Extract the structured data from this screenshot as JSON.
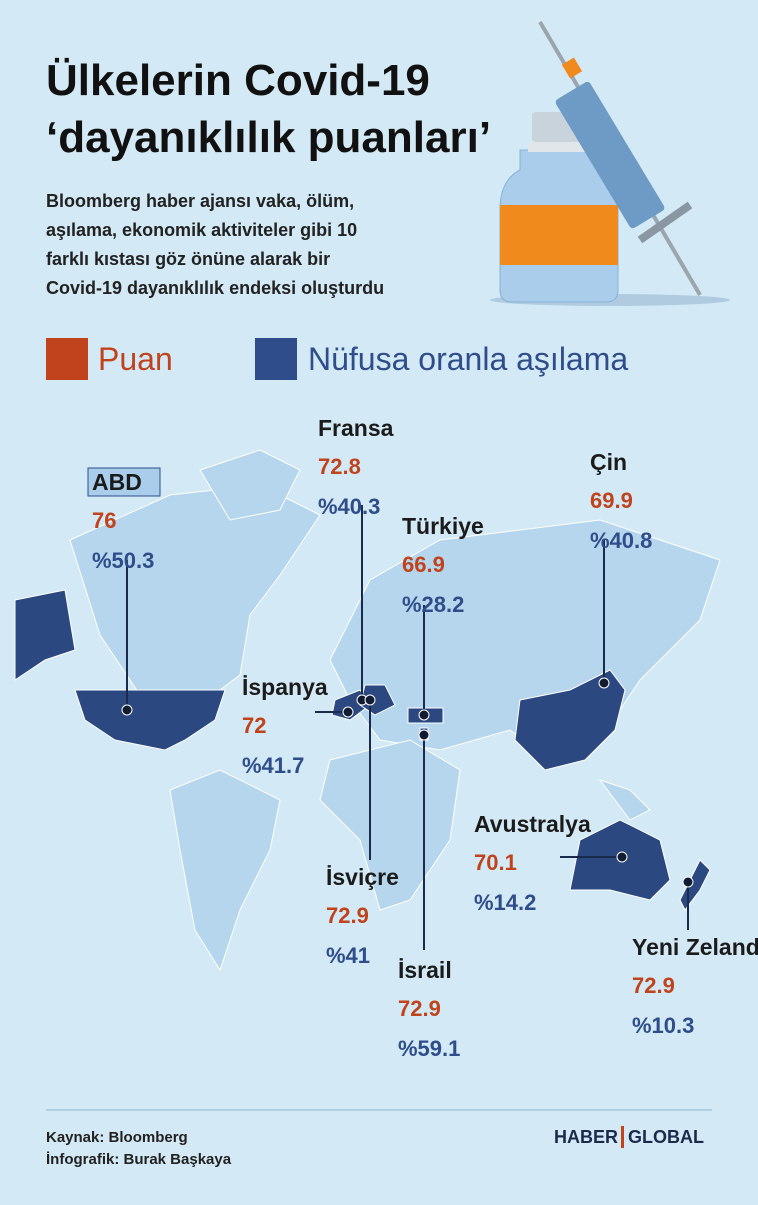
{
  "header": {
    "title_line1": "Ülkelerin Covid-19",
    "title_line2": "‘dayanıklılık puanları’",
    "description": [
      "Bloomberg haber ajansı vaka, ölüm,",
      "aşılama, ekonomik aktiviteler gibi 10",
      "farklı kıstası göz önüne alarak bir",
      "Covid-19 dayanıklılık endeksi oluşturdu"
    ]
  },
  "legend": {
    "score": "Puan",
    "vaccination": "Nüfusa oranla aşılama"
  },
  "countries": [
    {
      "name": "ABD",
      "score": "76",
      "vaccination": "%50.3"
    },
    {
      "name": "Fransa",
      "score": "72.8",
      "vaccination": "%40.3"
    },
    {
      "name": "Türkiye",
      "score": "66.9",
      "vaccination": "%28.2"
    },
    {
      "name": "Çin",
      "score": "69.9",
      "vaccination": "%40.8"
    },
    {
      "name": "İspanya",
      "score": "72",
      "vaccination": "%41.7"
    },
    {
      "name": "İsviçre",
      "score": "72.9",
      "vaccination": "%41"
    },
    {
      "name": "İsrail",
      "score": "72.9",
      "vaccination": "%59.1"
    },
    {
      "name": "Avustralya",
      "score": "70.1",
      "vaccination": "%14.2"
    },
    {
      "name": "Yeni Zelanda",
      "score": "72.9",
      "vaccination": "%10.3"
    }
  ],
  "footer": {
    "source": "Kaynak: Bloomberg",
    "author": "İnfografik: Burak Başkaya",
    "logo_left": "HABER",
    "logo_right": "GLOBAL"
  }
}
